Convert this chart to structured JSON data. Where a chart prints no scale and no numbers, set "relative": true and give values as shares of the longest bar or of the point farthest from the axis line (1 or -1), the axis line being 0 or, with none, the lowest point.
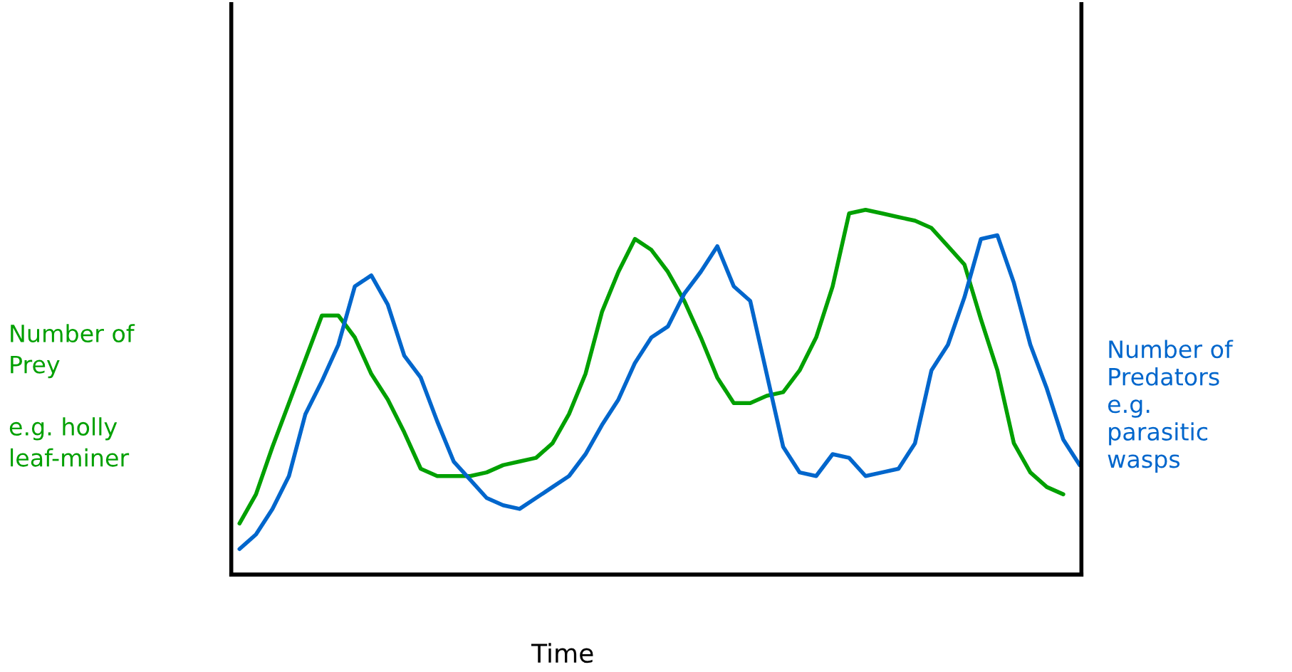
{
  "chart_data": {
    "type": "line",
    "relative": true,
    "xlabel": "Time",
    "ylabel": "Number of\nPrey\n\ne.g. holly\nleaf-miner",
    "y2label": "Number of\nPredators\ne.g.\nparasitic\nwasps",
    "grid": false,
    "marker": "none",
    "line_style": "solid",
    "categories": [
      null,
      null,
      null,
      null,
      null,
      null,
      null,
      null,
      null,
      null,
      null,
      null,
      null,
      null,
      null,
      null,
      null,
      null,
      null,
      null,
      null,
      null,
      null,
      null,
      null,
      null,
      null,
      null,
      null,
      null,
      null,
      null,
      null,
      null,
      null,
      null,
      null,
      null,
      null,
      null,
      null,
      null,
      null,
      null,
      null,
      null,
      null,
      null,
      null,
      null,
      null,
      null
    ],
    "series": [
      {
        "color": "#00a000",
        "values": [
          0.14,
          0.22,
          0.35,
          0.47,
          0.59,
          0.71,
          0.71,
          0.65,
          0.55,
          0.48,
          0.39,
          0.29,
          0.27,
          0.27,
          0.27,
          0.28,
          0.3,
          0.31,
          0.32,
          0.36,
          0.44,
          0.55,
          0.72,
          0.83,
          0.92,
          0.89,
          0.83,
          0.75,
          0.65,
          0.54,
          0.47,
          0.47,
          0.49,
          0.5,
          0.56,
          0.65,
          0.79,
          0.99,
          1.0,
          0.99,
          0.98,
          0.97,
          0.95,
          0.9,
          0.85,
          0.7,
          0.56,
          0.36,
          0.28,
          0.24,
          0.22,
          null
        ]
      },
      {
        "color": "#0066cc",
        "values": [
          0.07,
          0.11,
          0.18,
          0.27,
          0.44,
          0.53,
          0.63,
          0.79,
          0.82,
          0.74,
          0.6,
          0.54,
          0.42,
          0.31,
          0.26,
          0.21,
          0.19,
          0.18,
          0.21,
          0.24,
          0.27,
          0.33,
          0.41,
          0.48,
          0.58,
          0.65,
          0.68,
          0.77,
          0.83,
          0.9,
          0.79,
          0.75,
          0.55,
          0.35,
          0.28,
          0.27,
          0.33,
          0.32,
          0.27,
          0.28,
          0.29,
          0.36,
          0.56,
          0.63,
          0.76,
          0.92,
          0.93,
          0.8,
          0.63,
          0.51,
          0.37,
          0.3
        ]
      }
    ]
  }
}
